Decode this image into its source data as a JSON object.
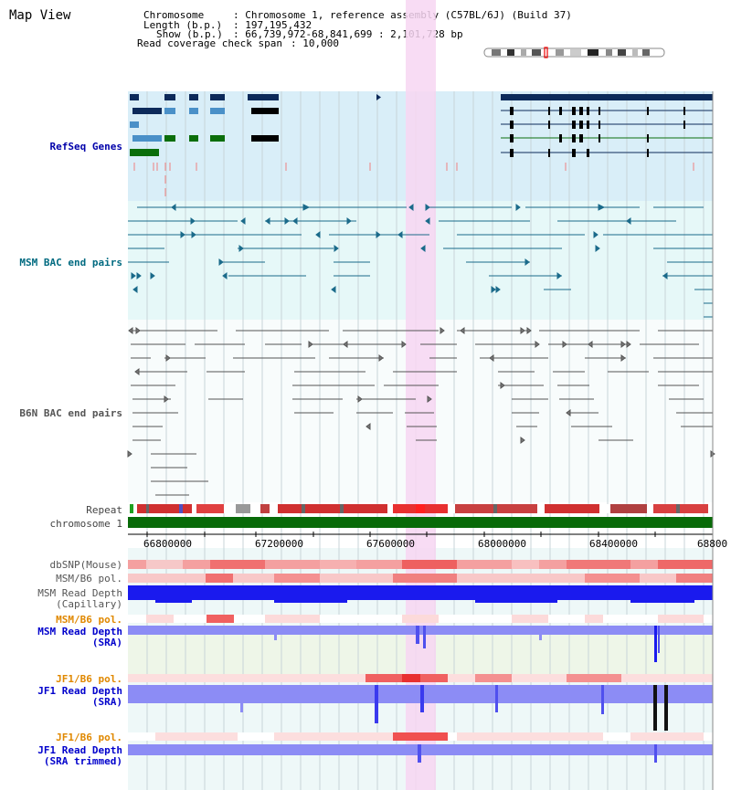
{
  "page": {
    "title": "Map View"
  },
  "info": {
    "chromosome_key": "Chromosome",
    "chromosome_val": ": Chromosome 1, reference assembly (C57BL/6J) (Build 37)",
    "length_key": "Length (b.p.)",
    "length_val": ": 197,195,432",
    "show_key": "Show (b.p.)",
    "show_val": ": 66,739,972-68,841,699 : 2,101,728 bp",
    "coverage_key": "Read coverage check span",
    "coverage_val": ": 10,000"
  },
  "tracks": {
    "refseq": "RefSeq Genes",
    "msm_bac": "MSM BAC end pairs",
    "b6n_bac": "B6N BAC end pairs",
    "repeat": "Repeat",
    "chromosome": "chromosome 1",
    "dbsnp": "dbSNP(Mouse)",
    "msm_b6_pol_1": "MSM/B6 pol.",
    "msm_depth_cap_1": "MSM Read Depth",
    "msm_depth_cap_2": "(Capillary)",
    "msm_b6_pol_2": "MSM/B6 pol.",
    "msm_depth_sra_1": "MSM Read Depth",
    "msm_depth_sra_2": "(SRA)",
    "jf1_b6_pol_1": "JF1/B6 pol.",
    "jf1_depth_sra_1": "JF1 Read Depth",
    "jf1_depth_sra_2": "(SRA)",
    "jf1_b6_pol_2": "JF1/B6 pol.",
    "jf1_depth_trim_1": "JF1 Read Depth",
    "jf1_depth_trim_2": "(SRA trimmed)"
  },
  "axis": {
    "ticks": [
      "66800000",
      "67200000",
      "67600000",
      "68000000",
      "68400000",
      "68800"
    ]
  },
  "colors": {
    "refseq_bg": "#d9eef8",
    "msm_bg": "#e6f8f8",
    "highlight": "#f7d6f2",
    "chromosome_bar": "#086a08",
    "msm_depth_blue": "#1a1aee",
    "depth_light": "#8c8cf5",
    "snp_red": "#f06060"
  },
  "icons": {
    "chromosome_ideogram": "chromosome-ideogram-icon"
  }
}
